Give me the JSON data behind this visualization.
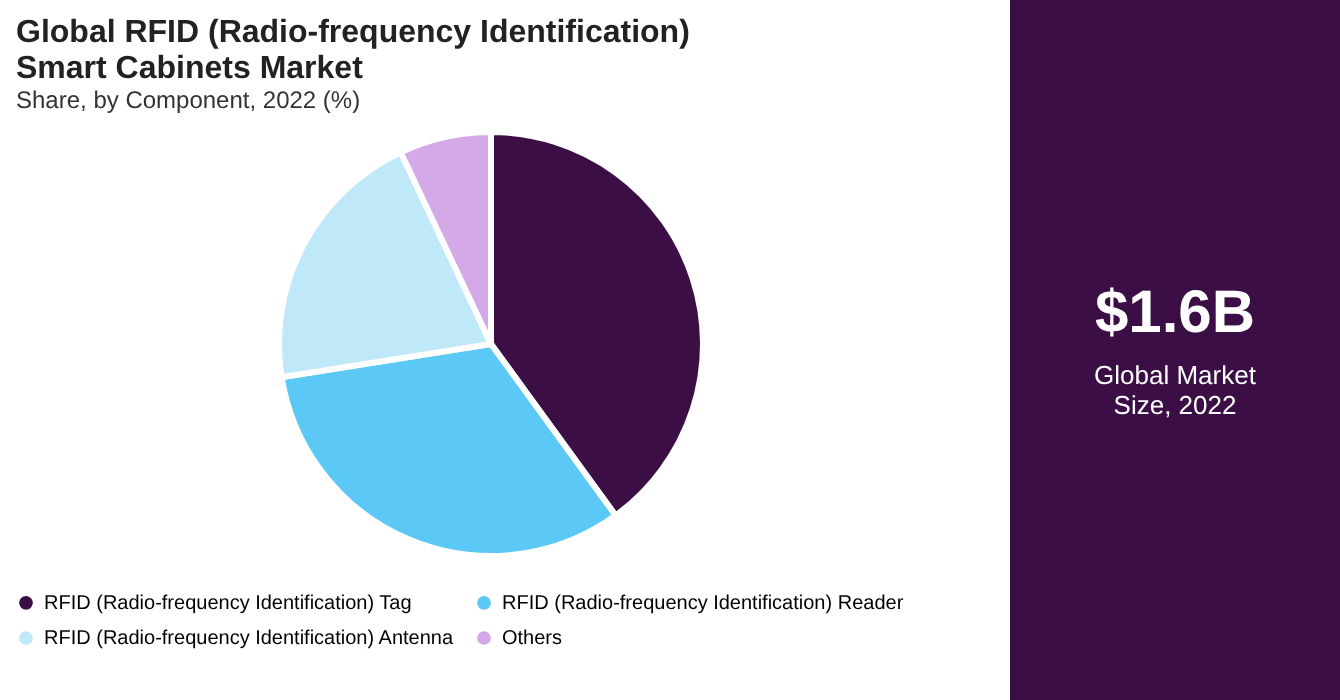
{
  "chart_data": {
    "type": "pie",
    "title": "Global RFID (Radio-frequency Identification) Smart Cabinets Market",
    "subtitle": "Share, by Component, 2022 (%)",
    "categories": [
      "RFID (Radio-frequency Identification) Tag",
      "RFID (Radio-frequency Identification) Reader",
      "RFID (Radio-frequency Identification) Antenna",
      "Others"
    ],
    "values": [
      40,
      32.5,
      20.5,
      7
    ],
    "colors": [
      "#3b0f45",
      "#5bc8f5",
      "#bfe8f8",
      "#d5a9e8"
    ],
    "legend": "bottom",
    "annotations": [
      "$1.6B",
      "Global Market Size, 2022"
    ]
  }
}
